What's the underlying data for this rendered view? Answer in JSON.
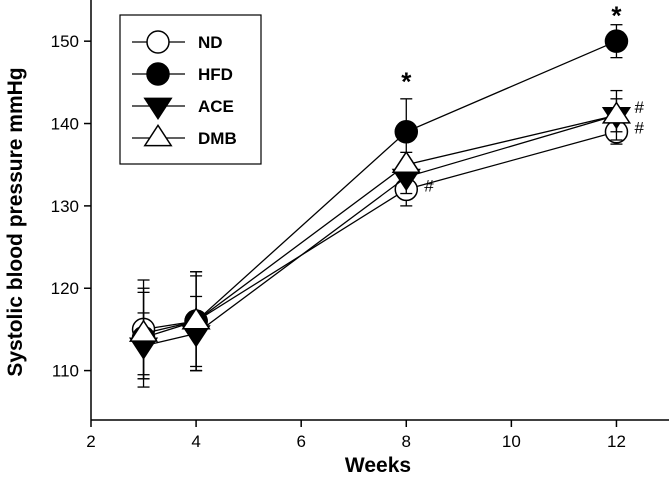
{
  "chart_data": {
    "type": "line",
    "xlabel": "Weeks",
    "ylabel": "Systolic blood pressure mmHg",
    "xlim": [
      2,
      13
    ],
    "ylim": [
      104,
      155
    ],
    "xticks": [
      2,
      4,
      6,
      8,
      10,
      12
    ],
    "yticks": [
      110,
      120,
      130,
      140,
      150
    ],
    "grid": false,
    "legend_position": "top-left",
    "x": [
      3,
      4,
      8,
      12
    ],
    "series": [
      {
        "name": "ND",
        "marker": "circle-open",
        "values": [
          115,
          116,
          132,
          139
        ],
        "errors": [
          6,
          6,
          2,
          1.5
        ]
      },
      {
        "name": "HFD",
        "marker": "circle-filled",
        "values": [
          114,
          116,
          139,
          150
        ],
        "errors": [
          6,
          6,
          4,
          2
        ]
      },
      {
        "name": "ACE",
        "marker": "triangle-down-filled",
        "values": [
          113,
          114.5,
          133.5,
          141
        ],
        "errors": [
          4,
          4.5,
          2,
          2
        ]
      },
      {
        "name": "DMB",
        "marker": "triangle-up-open",
        "values": [
          114.5,
          116,
          135,
          141
        ],
        "errors": [
          5,
          5.5,
          1.5,
          3
        ]
      }
    ],
    "annotations": [
      {
        "text": "*",
        "x": 8,
        "y": 145
      },
      {
        "text": "*",
        "x": 12,
        "y": 153
      },
      {
        "text": "#",
        "x": 8,
        "y": 132.5
      },
      {
        "text": "#",
        "x": 12,
        "y": 142
      },
      {
        "text": "#",
        "x": 12,
        "y": 139.5
      }
    ]
  }
}
